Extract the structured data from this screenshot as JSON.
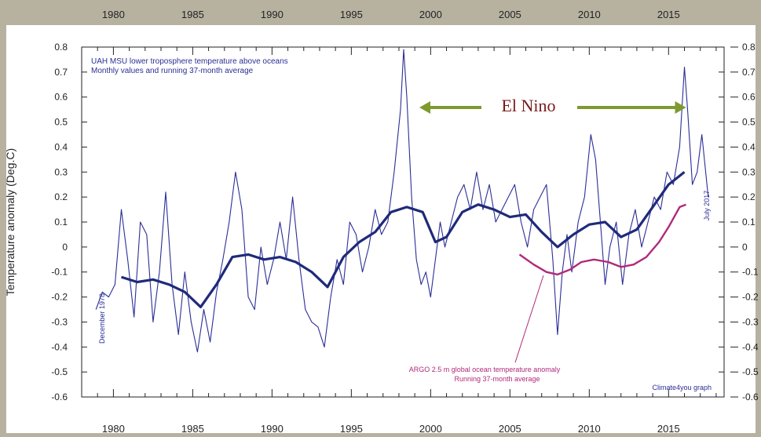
{
  "chart_data": {
    "type": "line",
    "title_lines": [
      "UAH MSU lower troposphere temperature above oceans",
      "Monthly values and running 37-month average"
    ],
    "ylabel": "Temperature anomaly (Deg.C)",
    "xlim": [
      1978,
      2018.5
    ],
    "ylim": [
      -0.6,
      0.8
    ],
    "x_ticks": [
      "1980",
      "1985",
      "1990",
      "1995",
      "2000",
      "2005",
      "2010",
      "2015"
    ],
    "y_ticks_left": [
      "0.8",
      "0.7",
      "0.6",
      "0.5",
      "0.4",
      "0.3",
      "0.2",
      "0.1",
      "0",
      "-0.1",
      "-0.2",
      "-0.3",
      "-0.4",
      "-0.5",
      "-0.6"
    ],
    "y_ticks_right": [
      "0.8",
      "0.7",
      "0.6",
      "0.5",
      "0.4",
      "0.3",
      "0.2",
      "0.1",
      "0",
      "-0.1",
      "-0.2",
      "-0.3",
      "-0.4",
      "-0.5",
      "-0.6"
    ],
    "start_label": "December 1978",
    "end_label": "July 2017",
    "el_nino_label": "El Nino",
    "el_nino_span": [
      1998.2,
      2016.1
    ],
    "argo_label_lines": [
      "ARGO 2.5 m global ocean temperature anomaly",
      "Running 37-month average"
    ],
    "credit": "Climate4you graph",
    "colors": {
      "monthly": "#2b2e96",
      "running_mean": "#1f2a7a",
      "argo": "#b02a7a",
      "arrow": "#7e9a2e",
      "el_nino_text": "#7a1a1a"
    },
    "series": [
      {
        "role": "monthly",
        "x": [
          1978.9,
          1979.3,
          1979.7,
          1980.1,
          1980.5,
          1980.9,
          1981.3,
          1981.7,
          1982.1,
          1982.5,
          1982.9,
          1983.3,
          1983.7,
          1984.1,
          1984.5,
          1984.9,
          1985.3,
          1985.7,
          1986.1,
          1986.5,
          1986.9,
          1987.3,
          1987.7,
          1988.1,
          1988.5,
          1988.9,
          1989.3,
          1989.7,
          1990.1,
          1990.5,
          1990.9,
          1991.3,
          1991.7,
          1992.1,
          1992.5,
          1992.9,
          1993.3,
          1993.7,
          1994.1,
          1994.5,
          1994.9,
          1995.3,
          1995.7,
          1996.1,
          1996.5,
          1996.9,
          1997.3,
          1997.7,
          1998.1,
          1998.3,
          1998.5,
          1998.8,
          1999.1,
          1999.4,
          1999.7,
          2000.0,
          2000.3,
          2000.6,
          2000.9,
          2001.3,
          2001.7,
          2002.1,
          2002.5,
          2002.9,
          2003.3,
          2003.7,
          2004.1,
          2004.5,
          2004.9,
          2005.3,
          2005.7,
          2006.1,
          2006.5,
          2006.9,
          2007.3,
          2007.7,
          2008.0,
          2008.3,
          2008.6,
          2008.9,
          2009.3,
          2009.7,
          2010.1,
          2010.4,
          2010.7,
          2011.0,
          2011.3,
          2011.7,
          2012.1,
          2012.5,
          2012.9,
          2013.3,
          2013.7,
          2014.1,
          2014.5,
          2014.9,
          2015.3,
          2015.7,
          2016.0,
          2016.2,
          2016.5,
          2016.8,
          2017.1,
          2017.5
        ],
        "y": [
          -0.25,
          -0.18,
          -0.2,
          -0.15,
          0.15,
          -0.05,
          -0.28,
          0.1,
          0.05,
          -0.3,
          -0.1,
          0.22,
          -0.15,
          -0.35,
          -0.1,
          -0.3,
          -0.42,
          -0.25,
          -0.38,
          -0.18,
          -0.05,
          0.1,
          0.3,
          0.15,
          -0.2,
          -0.25,
          0.0,
          -0.15,
          -0.05,
          0.1,
          -0.05,
          0.2,
          -0.05,
          -0.25,
          -0.3,
          -0.32,
          -0.4,
          -0.2,
          -0.05,
          -0.15,
          0.1,
          0.05,
          -0.1,
          0.0,
          0.15,
          0.05,
          0.1,
          0.3,
          0.55,
          0.79,
          0.6,
          0.2,
          -0.05,
          -0.15,
          -0.1,
          -0.2,
          -0.05,
          0.1,
          0.0,
          0.1,
          0.2,
          0.25,
          0.15,
          0.3,
          0.15,
          0.25,
          0.1,
          0.15,
          0.2,
          0.25,
          0.1,
          0.0,
          0.15,
          0.2,
          0.25,
          -0.05,
          -0.35,
          -0.1,
          0.05,
          -0.1,
          0.1,
          0.2,
          0.45,
          0.35,
          0.1,
          -0.15,
          0.0,
          0.1,
          -0.15,
          0.05,
          0.15,
          0.0,
          0.1,
          0.2,
          0.15,
          0.3,
          0.25,
          0.4,
          0.72,
          0.55,
          0.25,
          0.3,
          0.45,
          0.2
        ]
      },
      {
        "role": "running_mean",
        "x": [
          1980.5,
          1981.5,
          1982.5,
          1983.5,
          1984.5,
          1985.5,
          1986.5,
          1987.5,
          1988.5,
          1989.5,
          1990.5,
          1991.5,
          1992.5,
          1993.5,
          1994.5,
          1995.5,
          1996.5,
          1997.5,
          1998.5,
          1999.5,
          2000.3,
          2001.0,
          2002.0,
          2003.0,
          2004.0,
          2005.0,
          2006.0,
          2007.0,
          2008.0,
          2009.0,
          2010.0,
          2011.0,
          2012.0,
          2013.0,
          2014.0,
          2015.0,
          2015.6,
          2016.0
        ],
        "y": [
          -0.12,
          -0.14,
          -0.13,
          -0.15,
          -0.18,
          -0.24,
          -0.15,
          -0.04,
          -0.03,
          -0.05,
          -0.04,
          -0.06,
          -0.1,
          -0.16,
          -0.04,
          0.02,
          0.06,
          0.14,
          0.16,
          0.14,
          0.02,
          0.04,
          0.14,
          0.17,
          0.15,
          0.12,
          0.13,
          0.06,
          0.0,
          0.05,
          0.09,
          0.1,
          0.04,
          0.07,
          0.16,
          0.25,
          0.28,
          0.3
        ]
      },
      {
        "role": "argo",
        "x": [
          2005.6,
          2006.5,
          2007.3,
          2008.0,
          2008.8,
          2009.5,
          2010.3,
          2011.2,
          2012.0,
          2012.8,
          2013.6,
          2014.4,
          2015.0,
          2015.7,
          2016.1
        ],
        "y": [
          -0.03,
          -0.07,
          -0.1,
          -0.11,
          -0.09,
          -0.06,
          -0.05,
          -0.06,
          -0.08,
          -0.07,
          -0.04,
          0.02,
          0.08,
          0.16,
          0.17
        ]
      }
    ]
  }
}
